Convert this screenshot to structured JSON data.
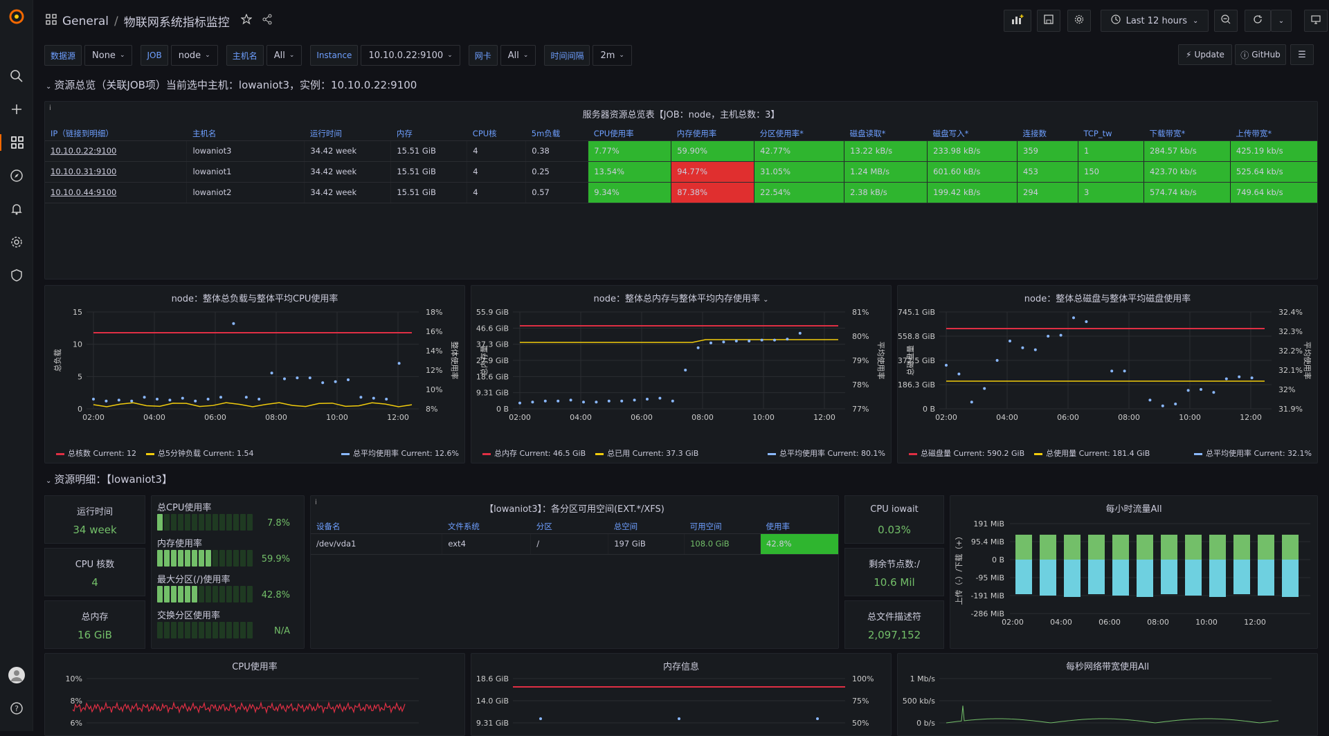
{
  "header": {
    "folder": "General",
    "separator": "/",
    "title": "物联网系统指标监控",
    "time_range": "Last 12 hours"
  },
  "variables": [
    {
      "label": "数据源",
      "value": "None"
    },
    {
      "label": "JOB",
      "value": "node"
    },
    {
      "label": "主机名",
      "value": "All"
    },
    {
      "label": "Instance",
      "value": "10.10.0.22:9100"
    },
    {
      "label": "网卡",
      "value": "All"
    },
    {
      "label": "时间间隔",
      "value": "2m"
    }
  ],
  "links": {
    "update": "Update",
    "github": "GitHub"
  },
  "row1": {
    "title": "资源总览（关联JOB项）当前选中主机：lowaniot3，实例：10.10.0.22:9100"
  },
  "overview": {
    "title": "服务器资源总览表【JOB：node，主机总数：3】",
    "columns": [
      "IP（链接到明细）",
      "主机名",
      "运行时间",
      "内存",
      "CPU核",
      "5m负载",
      "CPU使用率",
      "内存使用率",
      "分区使用率*",
      "磁盘读取*",
      "磁盘写入*",
      "连接数",
      "TCP_tw",
      "下载带宽*",
      "上传带宽*"
    ],
    "rows": [
      [
        "10.10.0.22:9100",
        "lowaniot3",
        "34.42 week",
        "15.51 GiB",
        "4",
        "0.38",
        "7.77%",
        "59.90%",
        "42.77%",
        "13.22 kB/s",
        "233.98 kB/s",
        "359",
        "1",
        "284.57 kb/s",
        "425.19 kb/s"
      ],
      [
        "10.10.0.31:9100",
        "lowaniot1",
        "34.42 week",
        "15.51 GiB",
        "4",
        "0.25",
        "13.54%",
        "94.77%",
        "31.05%",
        "1.24 MB/s",
        "601.60 kB/s",
        "453",
        "150",
        "423.70 kb/s",
        "525.64 kb/s"
      ],
      [
        "10.10.0.44:9100",
        "lowaniot2",
        "34.42 week",
        "15.51 GiB",
        "4",
        "0.57",
        "9.34%",
        "87.38%",
        "22.54%",
        "2.38 kB/s",
        "199.42 kB/s",
        "294",
        "3",
        "574.74 kb/s",
        "749.64 kb/s"
      ]
    ]
  },
  "charts": {
    "cpu": {
      "title": "node：整体总负载与整体平均CPU使用率",
      "ylabel": "总负载",
      "y2label": "整体使用率",
      "yticks": [
        "15",
        "10",
        "5",
        "0"
      ],
      "y2ticks": [
        "18%",
        "16%",
        "14%",
        "12%",
        "10%",
        "8%"
      ],
      "xticks": [
        "02:00",
        "04:00",
        "06:00",
        "08:00",
        "10:00",
        "12:00"
      ],
      "legend": [
        {
          "name": "总核数",
          "cur": "Current: 12",
          "color": "#e02f44"
        },
        {
          "name": "总5分钟负载",
          "cur": "Current: 1.54",
          "color": "#f2cc0c"
        },
        {
          "name": "总平均使用率",
          "cur": "Current: 12.6%",
          "color": "#8ab8ff"
        }
      ]
    },
    "mem": {
      "title": "node：整体总内存与整体平均内存使用率",
      "ylabel": "总内存量",
      "y2label": "平均使用率",
      "yticks": [
        "55.9 GiB",
        "46.6 GiB",
        "37.3 GiB",
        "27.9 GiB",
        "18.6 GiB",
        "9.31 GiB",
        "0 B"
      ],
      "y2ticks": [
        "81%",
        "80%",
        "79%",
        "78%",
        "77%"
      ],
      "xticks": [
        "02:00",
        "04:00",
        "06:00",
        "08:00",
        "10:00",
        "12:00"
      ],
      "legend": [
        {
          "name": "总内存",
          "cur": "Current: 46.5 GiB",
          "color": "#e02f44"
        },
        {
          "name": "总已用",
          "cur": "Current: 37.3 GiB",
          "color": "#f2cc0c"
        },
        {
          "name": "总平均使用率",
          "cur": "Current: 80.1%",
          "color": "#8ab8ff"
        }
      ]
    },
    "disk": {
      "title": "node：整体总磁盘与整体平均磁盘使用率",
      "ylabel": "总磁盘量",
      "y2label": "平均使用率",
      "yticks": [
        "745.1 GiB",
        "558.8 GiB",
        "372.5 GiB",
        "186.3 GiB",
        "0 B"
      ],
      "y2ticks": [
        "32.4%",
        "32.3%",
        "32.2%",
        "32.1%",
        "32%",
        "31.9%"
      ],
      "xticks": [
        "02:00",
        "04:00",
        "06:00",
        "08:00",
        "10:00",
        "12:00"
      ],
      "legend": [
        {
          "name": "总磁盘量",
          "cur": "Current: 590.2 GiB",
          "color": "#e02f44"
        },
        {
          "name": "总使用量",
          "cur": "Current: 181.4 GiB",
          "color": "#f2cc0c"
        },
        {
          "name": "总平均使用率",
          "cur": "Current: 32.1%",
          "color": "#8ab8ff"
        }
      ]
    }
  },
  "row2": {
    "title": "资源明细：【lowaniot3】"
  },
  "stats": {
    "uptime": {
      "label": "运行时间",
      "value": "34 week"
    },
    "cores": {
      "label": "CPU 核数",
      "value": "4"
    },
    "mem": {
      "label": "总内存",
      "value": "16 GiB"
    },
    "iowait": {
      "label": "CPU iowait",
      "value": "0.03%"
    },
    "inodes": {
      "label": "剩余节点数:/",
      "value": "10.6 Mil"
    },
    "fd": {
      "label": "总文件描述符",
      "value": "2,097,152"
    }
  },
  "gauges": [
    {
      "label": "总CPU使用率",
      "value": "7.8%",
      "fraction": 0.078
    },
    {
      "label": "内存使用率",
      "value": "59.9%",
      "fraction": 0.599
    },
    {
      "label": "最大分区(/)使用率",
      "value": "42.8%",
      "fraction": 0.428
    },
    {
      "label": "交换分区使用率",
      "value": "N/A",
      "fraction": 0
    }
  ],
  "partitions": {
    "title": "【lowaniot3】：各分区可用空间(EXT.*/XFS)",
    "columns": [
      "设备名",
      "文件系统",
      "分区",
      "总空间",
      "可用空间",
      "使用率"
    ],
    "row": [
      "/dev/vda1",
      "ext4",
      "/",
      "197 GiB",
      "108.0 GiB",
      "42.8%"
    ]
  },
  "traffic": {
    "title": "每小时流量All",
    "ylabel": "上传（-）/下载（+）",
    "yticks": [
      "191 MiB",
      "95.4 MiB",
      "0 B",
      "-95 MiB",
      "-191 MiB",
      "-286 MiB"
    ],
    "xticks": [
      "02:00",
      "04:00",
      "06:00",
      "08:00",
      "10:00",
      "12:00"
    ]
  },
  "bottom": {
    "cpu": {
      "title": "CPU使用率",
      "yticks": [
        "10%",
        "8%",
        "6%"
      ]
    },
    "mem": {
      "title": "内存信息",
      "yticks": [
        "18.6 GiB",
        "14.0 GiB",
        "9.31 GiB"
      ],
      "y2ticks": [
        "100%",
        "75%",
        "50%"
      ]
    },
    "net": {
      "title": "每秒网络带宽使用All",
      "yticks": [
        "1 Mb/s",
        "500 kb/s",
        "0 b/s"
      ]
    }
  }
}
